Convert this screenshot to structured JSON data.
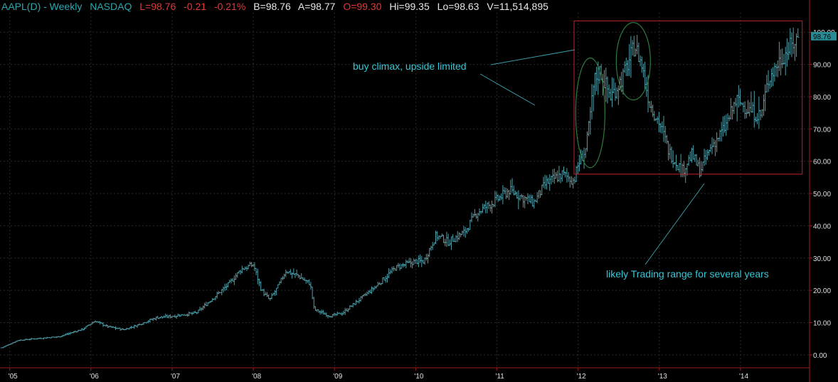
{
  "header": {
    "symbol": "AAPL(D) - Weekly",
    "exchange": "NASDAQ",
    "last": "L=98.76",
    "change": "-0.21",
    "change_pct": "-0.21%",
    "bid": "B=98.76",
    "ask": "A=98.77",
    "open": "O=99.30",
    "high": "Hi=99.35",
    "low": "Lo=98.63",
    "volume": "V=11,514,895"
  },
  "colors": {
    "background": "#000000",
    "bars": "#4fa0aa",
    "header_teal": "#2aa7b0",
    "header_red": "#e03a3a",
    "annotation_text": "#35c8d8",
    "range_box": "#c0242a",
    "climax_ellipse": "#2d7a3e",
    "grid": "#2a2a2a",
    "axis": "#a01c1c"
  },
  "chart_data": {
    "type": "ohlc",
    "title": "",
    "xlabel": "",
    "ylabel": "",
    "x_range": [
      2004.88,
      2014.85
    ],
    "ylim": [
      -4,
      106
    ],
    "y_ticks": [
      0,
      10,
      20,
      30,
      40,
      50,
      60,
      70,
      80,
      90,
      100
    ],
    "y_tick_labels": [
      "0.00",
      "10.00",
      "20.00",
      "30.00",
      "40.00",
      "50.00",
      "60.00",
      "70.00",
      "80.00",
      "90.00",
      "100.00"
    ],
    "x_ticks": [
      2005,
      2006,
      2007,
      2008,
      2009,
      2010,
      2011,
      2012,
      2013,
      2014
    ],
    "x_tick_labels": [
      "'05",
      "'06",
      "'07",
      "'08",
      "'09",
      "'10",
      "'11",
      "'12",
      "'13",
      "'14"
    ],
    "grid": true,
    "current_price": 98.76,
    "current_price_label": "98.76",
    "price_path": [
      [
        2004.9,
        2.2
      ],
      [
        2005.1,
        4.5
      ],
      [
        2005.3,
        5.0
      ],
      [
        2005.6,
        5.6
      ],
      [
        2005.9,
        8.0
      ],
      [
        2006.05,
        10.5
      ],
      [
        2006.2,
        8.8
      ],
      [
        2006.4,
        7.8
      ],
      [
        2006.55,
        9.0
      ],
      [
        2006.8,
        11.5
      ],
      [
        2007.0,
        12.0
      ],
      [
        2007.3,
        13.0
      ],
      [
        2007.5,
        17.5
      ],
      [
        2007.7,
        22.0
      ],
      [
        2007.85,
        26.5
      ],
      [
        2008.0,
        28.0
      ],
      [
        2008.1,
        20.0
      ],
      [
        2008.2,
        17.0
      ],
      [
        2008.3,
        21.0
      ],
      [
        2008.4,
        26.0
      ],
      [
        2008.55,
        24.5
      ],
      [
        2008.7,
        22.0
      ],
      [
        2008.75,
        14.0
      ],
      [
        2008.95,
        12.0
      ],
      [
        2009.1,
        13.0
      ],
      [
        2009.25,
        16.0
      ],
      [
        2009.5,
        21.0
      ],
      [
        2009.75,
        27.0
      ],
      [
        2010.0,
        29.0
      ],
      [
        2010.1,
        29.0
      ],
      [
        2010.25,
        37.0
      ],
      [
        2010.4,
        35.0
      ],
      [
        2010.6,
        38.0
      ],
      [
        2010.75,
        44.0
      ],
      [
        2011.0,
        48.0
      ],
      [
        2011.15,
        51.0
      ],
      [
        2011.3,
        49.0
      ],
      [
        2011.45,
        47.0
      ],
      [
        2011.6,
        53.0
      ],
      [
        2011.8,
        56.0
      ],
      [
        2011.95,
        54.0
      ],
      [
        2012.0,
        59.0
      ],
      [
        2012.1,
        64.0
      ],
      [
        2012.2,
        85.0
      ],
      [
        2012.27,
        88.0
      ],
      [
        2012.4,
        80.0
      ],
      [
        2012.55,
        86.0
      ],
      [
        2012.7,
        96.0
      ],
      [
        2012.78,
        90.0
      ],
      [
        2012.88,
        78.0
      ],
      [
        2013.0,
        72.0
      ],
      [
        2013.12,
        63.0
      ],
      [
        2013.28,
        57.0
      ],
      [
        2013.4,
        62.0
      ],
      [
        2013.5,
        57.0
      ],
      [
        2013.65,
        65.0
      ],
      [
        2013.8,
        70.0
      ],
      [
        2013.95,
        79.0
      ],
      [
        2014.1,
        76.0
      ],
      [
        2014.25,
        74.0
      ],
      [
        2014.35,
        86.0
      ],
      [
        2014.5,
        92.0
      ],
      [
        2014.65,
        96.5
      ],
      [
        2014.72,
        98.76
      ]
    ]
  },
  "annotations": {
    "buy_climax": "buy climax, upside limited",
    "trading_range": "likely Trading range for several years"
  },
  "range_box": {
    "x_from": 2011.95,
    "x_to": 2014.76,
    "y_from": 56,
    "y_to": 103.5
  },
  "climax_ellipses": [
    {
      "x_center": 2012.15,
      "y_center": 75,
      "x_halfwidth": 0.18,
      "y_halfwidth": 17
    },
    {
      "x_center": 2012.68,
      "y_center": 91,
      "x_halfwidth": 0.21,
      "y_halfwidth": 12
    }
  ]
}
